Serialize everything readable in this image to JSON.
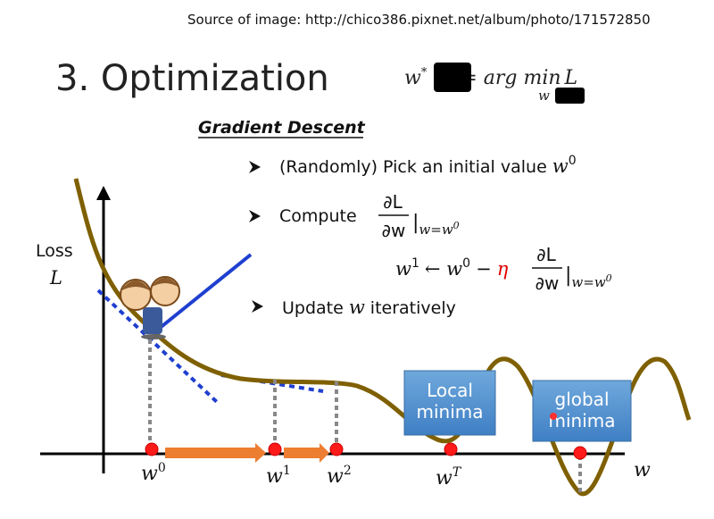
{
  "source": "Source of image: http://chico386.pixnet.net/album/photo/171572850",
  "title": "3. Optimization",
  "formula": {
    "lhs": "w",
    "star": "*",
    "op": "= arg min",
    "sub": "w",
    "rhs": "L"
  },
  "subtitle": "Gradient Descent",
  "bullets": [
    {
      "text": "(Randomly) Pick an initial value",
      "var": "w",
      "sup": "0"
    },
    {
      "text": "Compute",
      "num": "∂L",
      "den": "∂w",
      "bar": "|",
      "cond": "w=w",
      "cond_sup": "0"
    },
    {
      "text": "Update",
      "var": "w",
      "rest": "iteratively"
    }
  ],
  "update_rule": {
    "lhs": "w",
    "lhs_sup": "1",
    "arrow": "← w",
    "arrow_sup": "0",
    "minus": "−",
    "eta": "η",
    "num": "∂L",
    "den": "∂w",
    "bar": "|",
    "cond": "w=w",
    "cond_sup": "0"
  },
  "axes": {
    "y_label": "Loss",
    "y_var": "L",
    "x_var": "w"
  },
  "points": [
    {
      "label": "w",
      "sup": "0"
    },
    {
      "label": "w",
      "sup": "1"
    },
    {
      "label": "w",
      "sup": "2"
    },
    {
      "label": "w",
      "sup": "T"
    }
  ],
  "callouts": [
    "Local\nminima",
    "global\nminima"
  ]
}
